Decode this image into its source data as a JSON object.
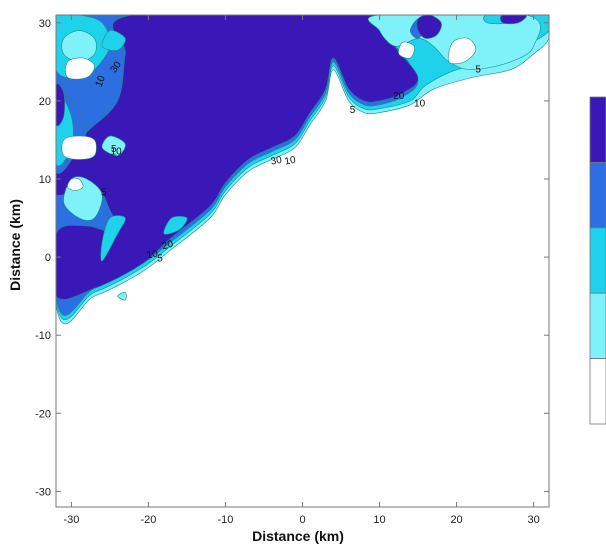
{
  "chart_data": {
    "type": "contour",
    "title": "",
    "xlabel": "Distance (km)",
    "ylabel": "Distance (km)",
    "xlim": [
      -32,
      32
    ],
    "ylim": [
      -32,
      31
    ],
    "x_ticks": [
      -30,
      -20,
      -10,
      0,
      10,
      20,
      30
    ],
    "y_ticks": [
      -30,
      -20,
      -10,
      0,
      10,
      20,
      30
    ],
    "levels": [
      5,
      10,
      20,
      30
    ],
    "legend_placement": "right",
    "legend_colors": [
      "#3a18b8",
      "#2b6fe0",
      "#1fd2ec",
      "#7ff1f8",
      "#ffffff"
    ],
    "colors": {
      "level_30": "#3a18b8",
      "level_20": "#2b6fe0",
      "level_10": "#1fd2ec",
      "level_5": "#7ff1f8",
      "below_5": "#ffffff",
      "contour_line": "#1a8a8a"
    },
    "regions": [
      {
        "level": 5,
        "points": [
          [
            -32,
            -6
          ],
          [
            -27,
            -5
          ],
          [
            -21,
            -2
          ],
          [
            -17,
            1
          ],
          [
            -12,
            5
          ],
          [
            -10,
            8
          ],
          [
            -7,
            11
          ],
          [
            -4,
            12.5
          ],
          [
            -1,
            14
          ],
          [
            1,
            17
          ],
          [
            3,
            20
          ],
          [
            4,
            24
          ],
          [
            6,
            20
          ],
          [
            8,
            18.5
          ],
          [
            10,
            18.5
          ],
          [
            14,
            19.5
          ],
          [
            17,
            21.5
          ],
          [
            22,
            23
          ],
          [
            27,
            24
          ],
          [
            30,
            26
          ],
          [
            32,
            28
          ],
          [
            32,
            31
          ],
          [
            -32,
            31
          ]
        ]
      },
      {
        "level": 10,
        "points": [
          [
            -32,
            -5.5
          ],
          [
            -27,
            -4.5
          ],
          [
            -21,
            -1.5
          ],
          [
            -17,
            1.5
          ],
          [
            -12,
            5.5
          ],
          [
            -10,
            8.5
          ],
          [
            -7,
            11.5
          ],
          [
            -4,
            13
          ],
          [
            -1,
            14.5
          ],
          [
            1,
            17.5
          ],
          [
            3,
            20.5
          ],
          [
            4,
            24.5
          ],
          [
            6,
            20.5
          ],
          [
            8,
            19
          ],
          [
            10,
            19
          ],
          [
            14,
            20
          ],
          [
            16,
            22
          ],
          [
            20,
            24
          ],
          [
            25,
            25
          ],
          [
            29,
            27
          ],
          [
            32,
            29
          ],
          [
            32,
            31
          ],
          [
            -32,
            31
          ]
        ]
      },
      {
        "level": 20,
        "points": [
          [
            -32,
            -5
          ],
          [
            -27,
            -4
          ],
          [
            -21,
            -1
          ],
          [
            -17,
            2
          ],
          [
            -12,
            6
          ],
          [
            -10,
            9
          ],
          [
            -7,
            12
          ],
          [
            -4,
            13.5
          ],
          [
            -1,
            15
          ],
          [
            1,
            18
          ],
          [
            3,
            21
          ],
          [
            4,
            25
          ],
          [
            6,
            21
          ],
          [
            8,
            19.5
          ],
          [
            10,
            19.5
          ],
          [
            13,
            20.5
          ],
          [
            15,
            22.5
          ],
          [
            13,
            26
          ],
          [
            11,
            28
          ],
          [
            10,
            31
          ],
          [
            -32,
            31
          ]
        ]
      },
      {
        "level": 30,
        "points": [
          [
            -32,
            -5
          ],
          [
            -27,
            -4
          ],
          [
            -21,
            -1
          ],
          [
            -17,
            2.5
          ],
          [
            -12,
            6.5
          ],
          [
            -10,
            9.5
          ],
          [
            -7,
            12.5
          ],
          [
            -4,
            14
          ],
          [
            -1,
            15.5
          ],
          [
            1,
            18.5
          ],
          [
            3,
            21.5
          ],
          [
            4,
            25.5
          ],
          [
            6,
            21.5
          ],
          [
            8,
            20
          ],
          [
            10,
            20
          ],
          [
            13,
            21
          ],
          [
            15,
            23
          ],
          [
            12,
            27
          ],
          [
            10,
            31
          ],
          [
            -22,
            31
          ],
          [
            -23,
            26
          ],
          [
            -24,
            20
          ],
          [
            -28,
            16
          ],
          [
            -32,
            12
          ],
          [
            -32,
            8
          ],
          [
            -27,
            9
          ],
          [
            -25,
            6
          ],
          [
            -24,
            3
          ],
          [
            -28,
            4
          ],
          [
            -32,
            3
          ]
        ]
      },
      {
        "level": 20,
        "points": [
          [
            -32,
            11
          ],
          [
            -29,
            14
          ],
          [
            -28,
            17
          ],
          [
            -30,
            20
          ],
          [
            -32,
            22
          ]
        ]
      },
      {
        "level": 10,
        "points": [
          [
            -32,
            12
          ],
          [
            -30,
            14
          ],
          [
            -30,
            18
          ],
          [
            -32,
            21
          ]
        ]
      },
      {
        "level": 30,
        "points": [
          [
            -32,
            17
          ],
          [
            -31,
            18
          ],
          [
            -31,
            21
          ],
          [
            -32,
            22
          ]
        ]
      },
      {
        "level": 5,
        "points": [
          [
            -31,
            7
          ],
          [
            -29,
            5
          ],
          [
            -27,
            5
          ],
          [
            -26,
            8
          ],
          [
            -28,
            10
          ],
          [
            -30,
            10
          ]
        ]
      },
      {
        "level": 5,
        "points": [
          [
            -26,
            14
          ],
          [
            -24,
            13
          ],
          [
            -23,
            14.5
          ],
          [
            -25,
            15.5
          ]
        ]
      },
      {
        "level": 10,
        "points": [
          [
            -32,
            24
          ],
          [
            -29,
            23
          ],
          [
            -27,
            24
          ],
          [
            -25,
            27
          ],
          [
            -26,
            30
          ],
          [
            -29,
            31
          ],
          [
            -32,
            31
          ]
        ]
      },
      {
        "level": 5,
        "points": [
          [
            -31,
            26
          ],
          [
            -29,
            25
          ],
          [
            -27,
            26
          ],
          [
            -27,
            28
          ],
          [
            -29,
            29
          ],
          [
            -31,
            28
          ]
        ]
      },
      {
        "level": 10,
        "points": [
          [
            -26,
            27
          ],
          [
            -24,
            26.5
          ],
          [
            -23,
            28
          ],
          [
            -25,
            29
          ]
        ]
      },
      {
        "level": 10,
        "points": [
          [
            -26,
            -0.5
          ],
          [
            -24,
            3
          ],
          [
            -23,
            5
          ],
          [
            -25,
            5
          ],
          [
            -26,
            2
          ]
        ]
      },
      {
        "level": 10,
        "points": [
          [
            -18,
            3
          ],
          [
            -16,
            3.5
          ],
          [
            -15,
            5
          ],
          [
            -17,
            5
          ]
        ]
      },
      {
        "level": 5,
        "points": [
          [
            -24,
            -5
          ],
          [
            -23,
            -4.5
          ],
          [
            -23,
            -5.5
          ]
        ]
      },
      {
        "level": 5,
        "points": [
          [
            10,
            29
          ],
          [
            12,
            27
          ],
          [
            15,
            28
          ],
          [
            17,
            27
          ],
          [
            19,
            25
          ],
          [
            22,
            24
          ],
          [
            27,
            25
          ],
          [
            30,
            27
          ],
          [
            29,
            31
          ],
          [
            10,
            31
          ]
        ]
      },
      {
        "level": 20,
        "points": [
          [
            14,
            29
          ],
          [
            15,
            28
          ],
          [
            16,
            29.5
          ],
          [
            15,
            30.5
          ]
        ]
      },
      {
        "level": 30,
        "points": [
          [
            15,
            29
          ],
          [
            16,
            28
          ],
          [
            17.5,
            28.5
          ],
          [
            18,
            30
          ],
          [
            16.5,
            31
          ],
          [
            15,
            30.5
          ]
        ]
      },
      {
        "level": 10,
        "points": [
          [
            24,
            30
          ],
          [
            27,
            30
          ],
          [
            29,
            31
          ],
          [
            24,
            31
          ]
        ]
      },
      {
        "level": 30,
        "points": [
          [
            26,
            30
          ],
          [
            28,
            30
          ],
          [
            29,
            31
          ],
          [
            26,
            31
          ]
        ]
      }
    ],
    "holes": [
      {
        "points": [
          [
            -31,
            13
          ],
          [
            -29,
            12.5
          ],
          [
            -27,
            13
          ],
          [
            -27,
            15
          ],
          [
            -29,
            15.5
          ],
          [
            -31,
            15
          ]
        ]
      },
      {
        "points": [
          [
            -30.5,
            23
          ],
          [
            -28,
            23
          ],
          [
            -27,
            24.5
          ],
          [
            -28.5,
            25.5
          ],
          [
            -30.5,
            25
          ]
        ]
      },
      {
        "points": [
          [
            -30.5,
            9
          ],
          [
            -29.5,
            8.5
          ],
          [
            -28.5,
            9
          ],
          [
            -29,
            10
          ],
          [
            -30,
            10
          ]
        ]
      },
      {
        "points": [
          [
            12.5,
            26
          ],
          [
            14,
            25.5
          ],
          [
            14.5,
            27
          ],
          [
            13,
            27.5
          ]
        ]
      },
      {
        "points": [
          [
            19,
            25
          ],
          [
            21,
            25
          ],
          [
            22.5,
            26.5
          ],
          [
            21.5,
            28
          ],
          [
            19.5,
            27.5
          ]
        ]
      }
    ],
    "contour_labels": [
      {
        "text": "10",
        "x": -26.2,
        "y": 22.5,
        "angle": -70
      },
      {
        "text": "30",
        "x": -24.2,
        "y": 24.3,
        "angle": -55
      },
      {
        "text": "5",
        "x": -24.5,
        "y": 13.8,
        "angle": 0
      },
      {
        "text": "10",
        "x": -24.2,
        "y": 13.5,
        "angle": 0
      },
      {
        "text": "5",
        "x": -25.8,
        "y": 8.2,
        "angle": 0
      },
      {
        "text": "10",
        "x": -19.5,
        "y": 0.3,
        "angle": -10
      },
      {
        "text": "5",
        "x": -18.5,
        "y": -0.2,
        "angle": 0
      },
      {
        "text": "20",
        "x": -17.5,
        "y": 1.5,
        "angle": -15
      },
      {
        "text": "30",
        "x": -3.4,
        "y": 12.3,
        "angle": -10
      },
      {
        "text": "10",
        "x": -1.6,
        "y": 12.3,
        "angle": -10
      },
      {
        "text": "5",
        "x": 6.5,
        "y": 18.8,
        "angle": 0
      },
      {
        "text": "20",
        "x": 12.5,
        "y": 20.6,
        "angle": 0
      },
      {
        "text": "10",
        "x": 15.2,
        "y": 19.6,
        "angle": 0
      },
      {
        "text": "5",
        "x": 22.8,
        "y": 24.0,
        "angle": 0
      }
    ]
  }
}
